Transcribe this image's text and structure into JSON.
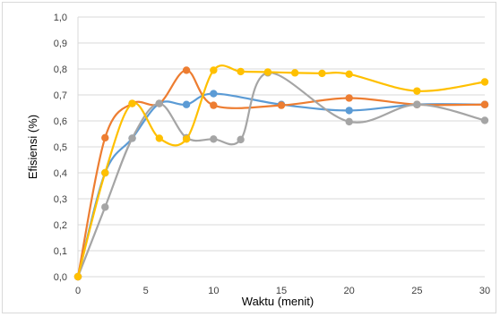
{
  "chart_data": {
    "type": "line",
    "smoothed": true,
    "markers": true,
    "title": "",
    "xlabel": "Waktu (menit)",
    "ylabel": "Efisiensi (%)",
    "xlim": [
      0,
      30
    ],
    "ylim": [
      0,
      1.0
    ],
    "x_ticks": [
      "0",
      "5",
      "10",
      "15",
      "20",
      "25",
      "30"
    ],
    "y_ticks": [
      "0,0",
      "0,1",
      "0,2",
      "0,3",
      "0,4",
      "0,5",
      "0,6",
      "0,7",
      "0,8",
      "0,9",
      "1,0"
    ],
    "grid": "horizontal",
    "legend": "none",
    "series": [
      {
        "color": "#5b9bd5",
        "points": [
          [
            0,
            0.0
          ],
          [
            2,
            0.4
          ],
          [
            4,
            0.533
          ],
          [
            6,
            0.667
          ],
          [
            8,
            0.663
          ],
          [
            10,
            0.705
          ],
          [
            15,
            0.663
          ],
          [
            20,
            0.64
          ],
          [
            25,
            0.663
          ],
          [
            30,
            0.663
          ]
        ]
      },
      {
        "color": "#ed7d31",
        "points": [
          [
            0,
            0.0
          ],
          [
            2,
            0.535
          ],
          [
            4,
            0.667
          ],
          [
            6,
            0.667
          ],
          [
            8,
            0.795
          ],
          [
            10,
            0.66
          ],
          [
            15,
            0.66
          ],
          [
            20,
            0.688
          ],
          [
            25,
            0.663
          ],
          [
            30,
            0.663
          ]
        ]
      },
      {
        "color": "#a5a5a5",
        "points": [
          [
            0,
            0.0
          ],
          [
            2,
            0.268
          ],
          [
            4,
            0.533
          ],
          [
            6,
            0.667
          ],
          [
            8,
            0.535
          ],
          [
            10,
            0.53
          ],
          [
            12,
            0.528
          ],
          [
            14,
            0.785
          ],
          [
            20,
            0.597
          ],
          [
            25,
            0.663
          ],
          [
            30,
            0.602
          ]
        ]
      },
      {
        "color": "#ffc000",
        "points": [
          [
            0,
            0.0
          ],
          [
            2,
            0.4
          ],
          [
            4,
            0.667
          ],
          [
            6,
            0.533
          ],
          [
            8,
            0.53
          ],
          [
            10,
            0.795
          ],
          [
            12,
            0.79
          ],
          [
            14,
            0.788
          ],
          [
            16,
            0.785
          ],
          [
            18,
            0.783
          ],
          [
            20,
            0.78
          ],
          [
            25,
            0.715
          ],
          [
            30,
            0.75
          ]
        ]
      }
    ]
  }
}
